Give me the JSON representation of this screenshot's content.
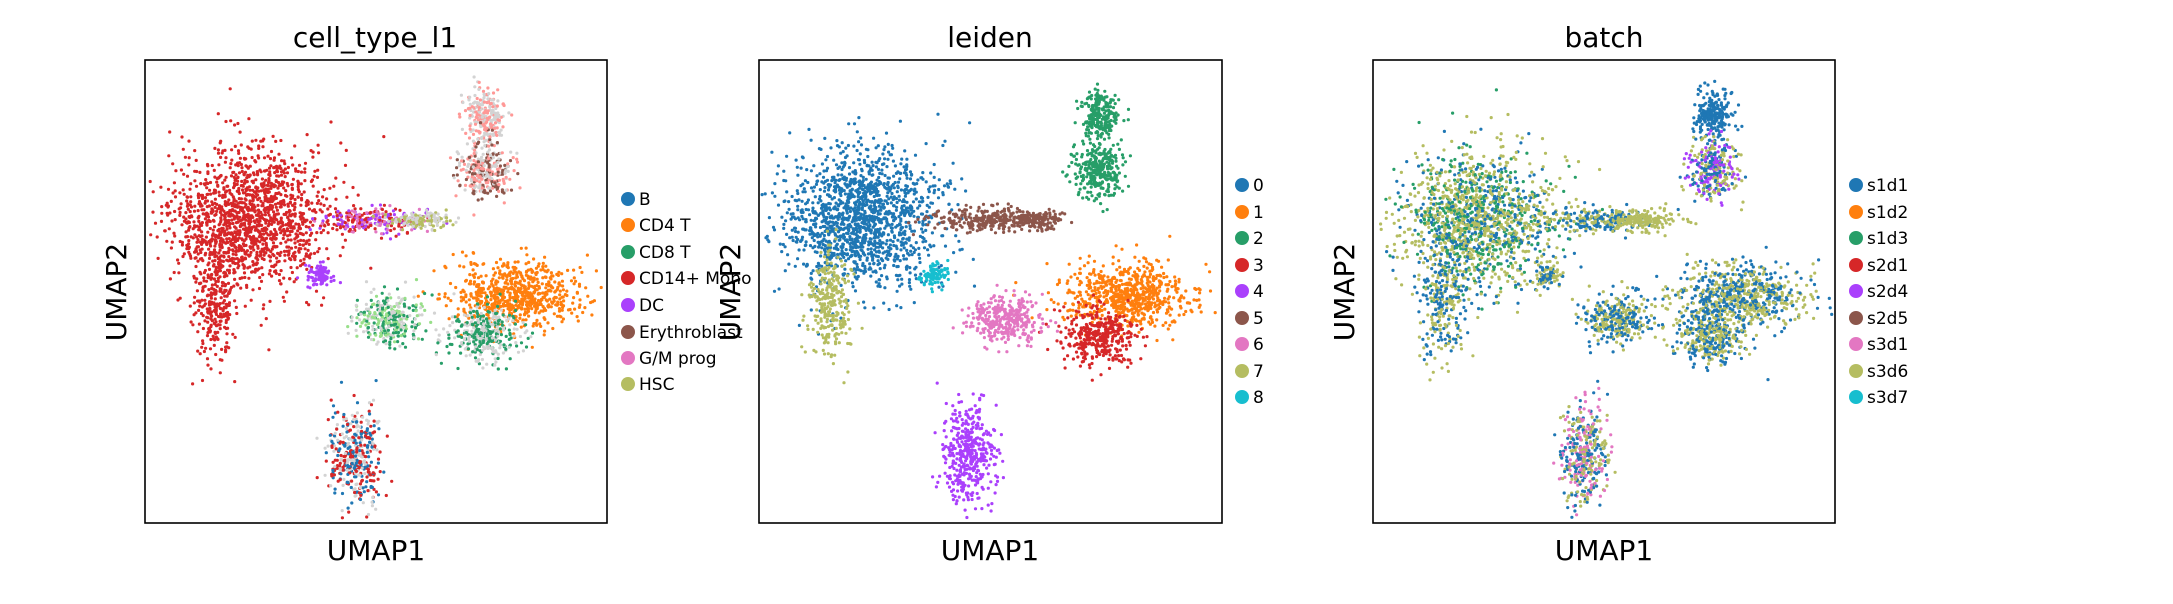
{
  "figure": {
    "panels": [
      {
        "title": "cell_type_l1",
        "xlabel": "UMAP1",
        "ylabel": "UMAP2",
        "legend": [
          {
            "label": "B",
            "color": "#1f77b4"
          },
          {
            "label": "CD4 T",
            "color": "#ff7f0e"
          },
          {
            "label": "CD8 T",
            "color": "#279e68"
          },
          {
            "label": "CD14+ Mono",
            "color": "#d62728"
          },
          {
            "label": "DC",
            "color": "#aa40fc"
          },
          {
            "label": "Erythroblast",
            "color": "#8c564b"
          },
          {
            "label": "G/M prog",
            "color": "#e377c2"
          },
          {
            "label": "HSC",
            "color": "#b5bd61"
          }
        ]
      },
      {
        "title": "leiden",
        "xlabel": "UMAP1",
        "ylabel": "UMAP2",
        "legend": [
          {
            "label": "0",
            "color": "#1f77b4"
          },
          {
            "label": "1",
            "color": "#ff7f0e"
          },
          {
            "label": "2",
            "color": "#279e68"
          },
          {
            "label": "3",
            "color": "#d62728"
          },
          {
            "label": "4",
            "color": "#aa40fc"
          },
          {
            "label": "5",
            "color": "#8c564b"
          },
          {
            "label": "6",
            "color": "#e377c2"
          },
          {
            "label": "7",
            "color": "#b5bd61"
          },
          {
            "label": "8",
            "color": "#17becf"
          }
        ]
      },
      {
        "title": "batch",
        "xlabel": "UMAP1",
        "ylabel": "UMAP2",
        "legend": [
          {
            "label": "s1d1",
            "color": "#1f77b4"
          },
          {
            "label": "s1d2",
            "color": "#ff7f0e"
          },
          {
            "label": "s1d3",
            "color": "#279e68"
          },
          {
            "label": "s2d1",
            "color": "#d62728"
          },
          {
            "label": "s2d4",
            "color": "#aa40fc"
          },
          {
            "label": "s2d5",
            "color": "#8c564b"
          },
          {
            "label": "s3d1",
            "color": "#e377c2"
          },
          {
            "label": "s3d6",
            "color": "#b5bd61"
          },
          {
            "label": "s3d7",
            "color": "#17becf"
          }
        ]
      }
    ]
  },
  "chart_data": [
    {
      "type": "scatter",
      "title": "cell_type_l1",
      "xlabel": "UMAP1",
      "ylabel": "UMAP2",
      "axis_ticks": false,
      "grid": false,
      "legend_position": "right, outside",
      "extra_visible_colors": [
        "#d3d3d3",
        "#ff9896",
        "#98df8a"
      ],
      "categories": [
        "B",
        "CD4 T",
        "CD8 T",
        "CD14+ Mono",
        "DC",
        "Erythroblast",
        "G/M prog",
        "HSC"
      ],
      "clusters": [
        {
          "category": "CD14+ Mono",
          "color": "#d62728",
          "location": "large left cluster"
        },
        {
          "category": "DC",
          "color": "#aa40fc",
          "location": "small blob below left cluster"
        },
        {
          "category": "G/M prog",
          "color": "#e377c2",
          "location": "bridge from left cluster"
        },
        {
          "category": "HSC",
          "color": "#b5bd61",
          "location": "bridge toward top-right"
        },
        {
          "category": "Erythroblast",
          "color": "#8c564b",
          "location": "top-right arm"
        },
        {
          "category": "CD4 T",
          "color": "#ff7f0e",
          "location": "right middle cluster"
        },
        {
          "category": "CD8 T",
          "color": "#279e68",
          "location": "right middle lower lobe"
        },
        {
          "category": "B",
          "color": "#1f77b4",
          "location": "bottom cluster"
        }
      ]
    },
    {
      "type": "scatter",
      "title": "leiden",
      "xlabel": "UMAP1",
      "ylabel": "UMAP2",
      "axis_ticks": false,
      "grid": false,
      "legend_position": "right, outside",
      "categories": [
        "0",
        "1",
        "2",
        "3",
        "4",
        "5",
        "6",
        "7",
        "8"
      ]
    },
    {
      "type": "scatter",
      "title": "batch",
      "xlabel": "UMAP1",
      "ylabel": "UMAP2",
      "axis_ticks": false,
      "grid": false,
      "legend_position": "right, outside",
      "categories": [
        "s1d1",
        "s1d2",
        "s1d3",
        "s2d1",
        "s2d4",
        "s2d5",
        "s3d1",
        "s3d6",
        "s3d7"
      ]
    }
  ]
}
